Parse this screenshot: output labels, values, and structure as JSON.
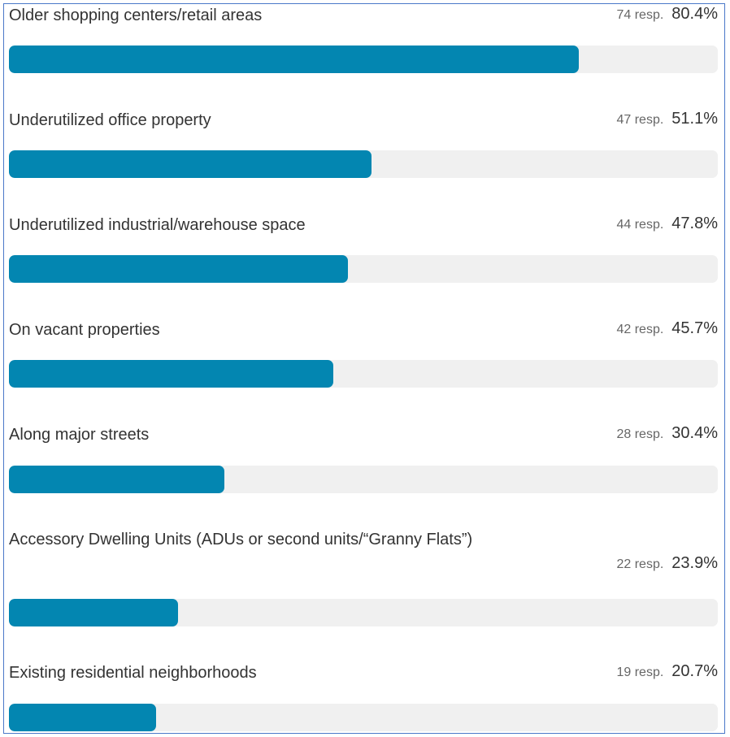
{
  "chart_data": {
    "type": "bar",
    "orientation": "horizontal",
    "bar_color": "#0386b1",
    "track_color": "#f0f0f0",
    "categories": [
      "Older shopping centers/retail areas",
      "Underutilized office property",
      "Underutilized industrial/warehouse space",
      "On vacant properties",
      "Along major streets",
      "Accessory Dwelling Units (ADUs or second units/“Granny Flats”)",
      "Existing residential neighborhoods"
    ],
    "responses": [
      74,
      47,
      44,
      42,
      28,
      22,
      19
    ],
    "response_labels": [
      "74 resp.",
      "47 resp.",
      "44 resp.",
      "42 resp.",
      "28 resp.",
      "22 resp.",
      "19 resp."
    ],
    "values": [
      80.4,
      51.1,
      47.8,
      45.7,
      30.4,
      23.9,
      20.7
    ],
    "value_labels": [
      "80.4%",
      "51.1%",
      "47.8%",
      "45.7%",
      "30.4%",
      "23.9%",
      "20.7%"
    ],
    "xlim": [
      0,
      100
    ]
  }
}
